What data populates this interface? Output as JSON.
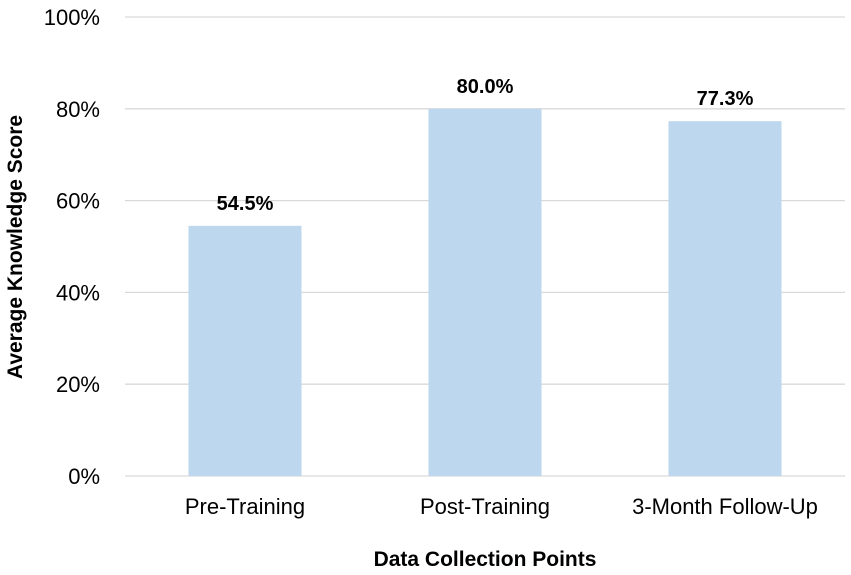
{
  "chart_data": {
    "type": "bar",
    "categories": [
      "Pre-Training",
      "Post-Training",
      "3-Month Follow-Up"
    ],
    "values": [
      54.5,
      80.0,
      77.3
    ],
    "data_labels": [
      "54.5%",
      "80.0%",
      "77.3%"
    ],
    "title": "",
    "xlabel": "Data Collection Points",
    "ylabel": "Average Knowledge Score",
    "ylim": [
      0,
      100
    ],
    "yticks": [
      0,
      20,
      40,
      60,
      80,
      100
    ],
    "ytick_labels": [
      "0%",
      "20%",
      "40%",
      "60%",
      "80%",
      "100%"
    ],
    "grid": true,
    "legend": "none",
    "bar_color": "#bdd7ee",
    "grid_color": "#d9d9d9"
  }
}
